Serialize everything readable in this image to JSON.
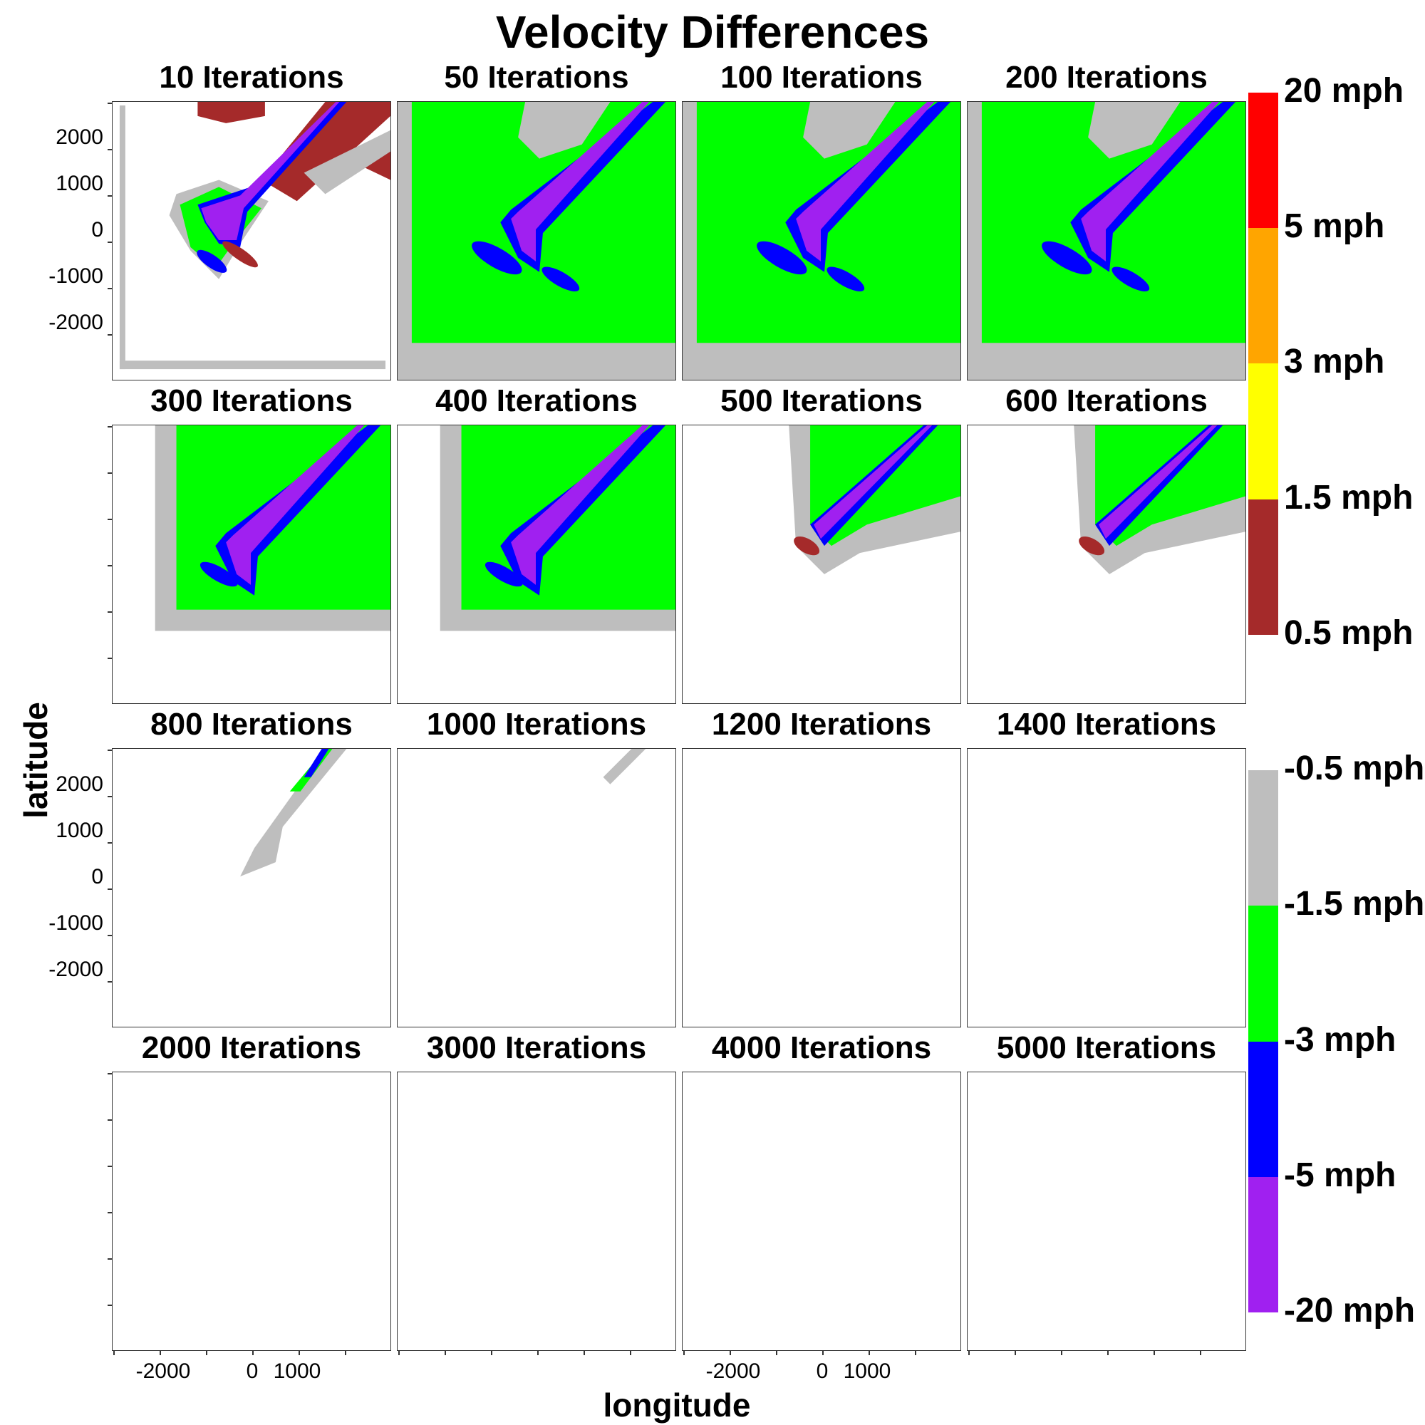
{
  "chart_data": {
    "type": "heatmap",
    "title": "Velocity Differences",
    "xlabel": "longitude",
    "ylabel": "latitude",
    "xlim": [
      -3000,
      3000
    ],
    "ylim": [
      -3000,
      3000
    ],
    "x_ticks": [
      "-2000",
      "0",
      "1000"
    ],
    "y_ticks": [
      "2000",
      "1000",
      "0",
      "-1000",
      "-2000"
    ],
    "legend": {
      "labels": [
        "20 mph",
        "5 mph",
        "3 mph",
        "1.5 mph",
        "0.5 mph",
        "-0.5 mph",
        "-1.5 mph",
        "-3 mph",
        "-5 mph",
        "-20 mph"
      ],
      "bins": [
        {
          "range": "5 to 20 mph",
          "color": "#ff0000"
        },
        {
          "range": "3 to 5 mph",
          "color": "#ffa500"
        },
        {
          "range": "1.5 to 3 mph",
          "color": "#ffff00"
        },
        {
          "range": "0.5 to 1.5 mph",
          "color": "#a52a2a"
        },
        {
          "range": "-0.5 to 0.5 mph",
          "color": "#ffffff"
        },
        {
          "range": "-1.5 to -0.5 mph",
          "color": "#bebebe"
        },
        {
          "range": "-3 to -1.5 mph",
          "color": "#00ff00"
        },
        {
          "range": "-5 to -3 mph",
          "color": "#0000ff"
        },
        {
          "range": "-20 to -5 mph",
          "color": "#a020f0"
        }
      ]
    },
    "panels": [
      {
        "title": "10 Iterations",
        "iterations": 10,
        "pattern": "early"
      },
      {
        "title": "50 Iterations",
        "iterations": 50,
        "pattern": "full"
      },
      {
        "title": "100 Iterations",
        "iterations": 100,
        "pattern": "full"
      },
      {
        "title": "200 Iterations",
        "iterations": 200,
        "pattern": "full"
      },
      {
        "title": "300 Iterations",
        "iterations": 300,
        "pattern": "shrinking"
      },
      {
        "title": "400 Iterations",
        "iterations": 400,
        "pattern": "shrinking"
      },
      {
        "title": "500 Iterations",
        "iterations": 500,
        "pattern": "plume"
      },
      {
        "title": "600 Iterations",
        "iterations": 600,
        "pattern": "plume"
      },
      {
        "title": "800 Iterations",
        "iterations": 800,
        "pattern": "streak"
      },
      {
        "title": "1000 Iterations",
        "iterations": 1000,
        "pattern": "faint"
      },
      {
        "title": "1200 Iterations",
        "iterations": 1200,
        "pattern": "empty"
      },
      {
        "title": "1400 Iterations",
        "iterations": 1400,
        "pattern": "empty"
      },
      {
        "title": "2000 Iterations",
        "iterations": 2000,
        "pattern": "empty"
      },
      {
        "title": "3000 Iterations",
        "iterations": 3000,
        "pattern": "empty"
      },
      {
        "title": "4000 Iterations",
        "iterations": 4000,
        "pattern": "empty"
      },
      {
        "title": "5000 Iterations",
        "iterations": 5000,
        "pattern": "empty"
      }
    ]
  }
}
